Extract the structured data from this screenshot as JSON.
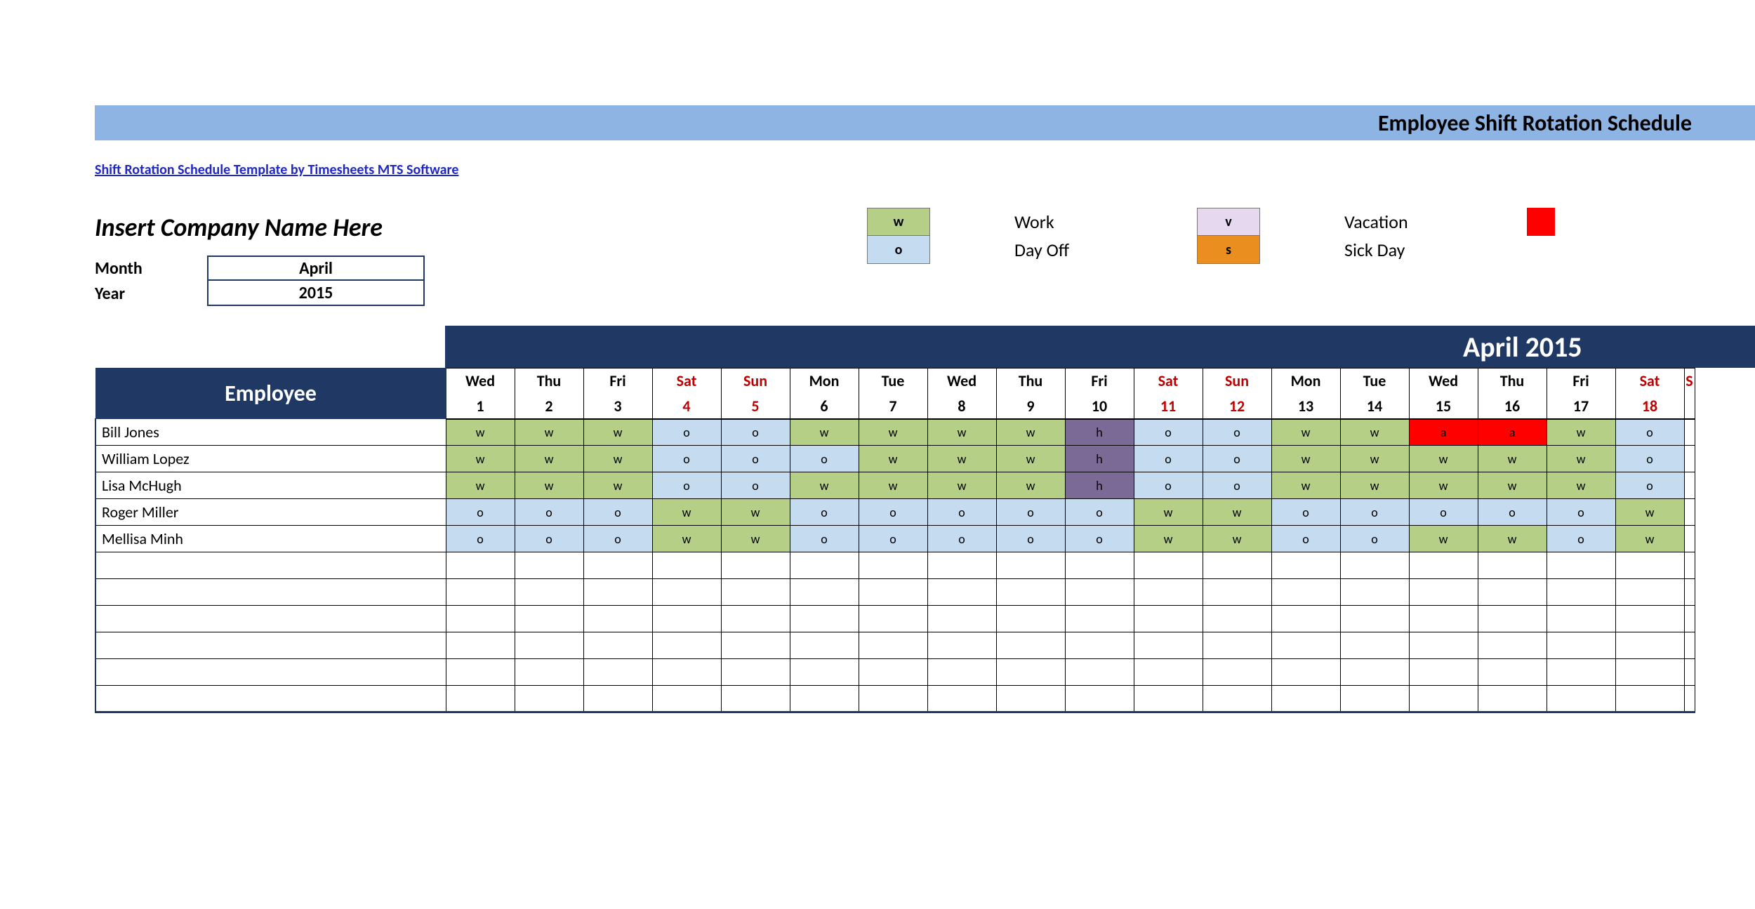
{
  "colors": {
    "title_bar_bg": "#8eb4e3",
    "dark_navy": "#1f3864",
    "link": "#1f27c4",
    "weekend_text": "#c00000",
    "code_colors": {
      "w": "#b5cf87",
      "o": "#c5dbef",
      "v": "#e6d9ef",
      "s": "#ea8e1f",
      "h": "#7b6a95",
      "a": "#ff0000",
      "red_swatch": "#ff0000"
    }
  },
  "title": "Employee Shift Rotation Schedule",
  "template_link": "Shift Rotation Schedule Template by Timesheets MTS Software",
  "company_placeholder": "Insert Company Name Here",
  "month_label": "Month",
  "year_label": "Year",
  "month_value": "April",
  "year_value": "2015",
  "month_band": "April 2015",
  "legend": [
    {
      "code": "w",
      "label": "Work"
    },
    {
      "code": "v",
      "label": "Vacation"
    },
    {
      "code": "red",
      "label": ""
    },
    {
      "code": "o",
      "label": "Day Off"
    },
    {
      "code": "s",
      "label": "Sick Day"
    }
  ],
  "employee_header": "Employee",
  "days": [
    {
      "dow": "Wed",
      "num": "1",
      "weekend": false
    },
    {
      "dow": "Thu",
      "num": "2",
      "weekend": false
    },
    {
      "dow": "Fri",
      "num": "3",
      "weekend": false
    },
    {
      "dow": "Sat",
      "num": "4",
      "weekend": true
    },
    {
      "dow": "Sun",
      "num": "5",
      "weekend": true
    },
    {
      "dow": "Mon",
      "num": "6",
      "weekend": false
    },
    {
      "dow": "Tue",
      "num": "7",
      "weekend": false
    },
    {
      "dow": "Wed",
      "num": "8",
      "weekend": false
    },
    {
      "dow": "Thu",
      "num": "9",
      "weekend": false
    },
    {
      "dow": "Fri",
      "num": "10",
      "weekend": false
    },
    {
      "dow": "Sat",
      "num": "11",
      "weekend": true
    },
    {
      "dow": "Sun",
      "num": "12",
      "weekend": true
    },
    {
      "dow": "Mon",
      "num": "13",
      "weekend": false
    },
    {
      "dow": "Tue",
      "num": "14",
      "weekend": false
    },
    {
      "dow": "Wed",
      "num": "15",
      "weekend": false
    },
    {
      "dow": "Thu",
      "num": "16",
      "weekend": false
    },
    {
      "dow": "Fri",
      "num": "17",
      "weekend": false
    },
    {
      "dow": "Sat",
      "num": "18",
      "weekend": true
    },
    {
      "dow": "S",
      "num": "",
      "weekend": true
    }
  ],
  "employees": [
    {
      "name": "Bill Jones",
      "shifts": [
        "w",
        "w",
        "w",
        "o",
        "o",
        "w",
        "w",
        "w",
        "w",
        "h",
        "o",
        "o",
        "w",
        "w",
        "a",
        "a",
        "w",
        "o",
        ""
      ]
    },
    {
      "name": "William Lopez",
      "shifts": [
        "w",
        "w",
        "w",
        "o",
        "o",
        "o",
        "w",
        "w",
        "w",
        "h",
        "o",
        "o",
        "w",
        "w",
        "w",
        "w",
        "w",
        "o",
        ""
      ]
    },
    {
      "name": "Lisa McHugh",
      "shifts": [
        "w",
        "w",
        "w",
        "o",
        "o",
        "w",
        "w",
        "w",
        "w",
        "h",
        "o",
        "o",
        "w",
        "w",
        "w",
        "w",
        "w",
        "o",
        ""
      ]
    },
    {
      "name": "Roger Miller",
      "shifts": [
        "o",
        "o",
        "o",
        "w",
        "w",
        "o",
        "o",
        "o",
        "o",
        "o",
        "w",
        "w",
        "o",
        "o",
        "o",
        "o",
        "o",
        "w",
        ""
      ]
    },
    {
      "name": "Mellisa Minh",
      "shifts": [
        "o",
        "o",
        "o",
        "w",
        "w",
        "o",
        "o",
        "o",
        "o",
        "o",
        "w",
        "w",
        "o",
        "o",
        "w",
        "w",
        "o",
        "w",
        ""
      ]
    }
  ],
  "empty_rows": 6
}
